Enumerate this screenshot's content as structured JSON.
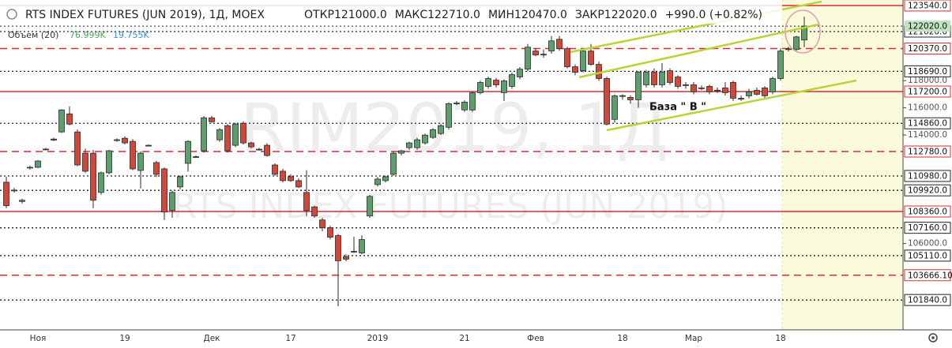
{
  "chart_data": {
    "type": "candlestick",
    "title": "RTS INDEX FUTURES (JUN 2019), 1Д, MOEX",
    "header_values": [
      {
        "label": "ОТКР",
        "value": "121000.0"
      },
      {
        "label": "МАКС",
        "value": "122710.0"
      },
      {
        "label": "МИН",
        "value": "120470.0"
      },
      {
        "label": "ЗАКР",
        "value": "122020.0"
      }
    ],
    "change": "+990.0 (+0.82%)",
    "volume_legend": {
      "name": "Объем (20)",
      "values": [
        {
          "text": "76.999K",
          "color": "#53a35a"
        },
        {
          "text": "19.755K",
          "color": "#2f8fd8"
        }
      ]
    },
    "watermarks": [
      "RIM2019, 1Д",
      "RTS INDEX FUTURES (JUN 2019)"
    ],
    "annotation": "База  \" В \"",
    "up_color": "#5d9e6d",
    "down_color": "#d2473a",
    "ylim": [
      99640,
      123945
    ],
    "yticks": [
      {
        "value": 118000,
        "label": "118000.0"
      },
      {
        "value": 116000,
        "label": "116000.0"
      },
      {
        "value": 114000,
        "label": "114000.0"
      },
      {
        "value": 106000,
        "label": "106000.0"
      }
    ],
    "levels": [
      {
        "value": 123540,
        "label": "123540.0",
        "style": "solid",
        "color": "#e0282e"
      },
      {
        "value": 121620,
        "label": "121620.0",
        "style": "dotted",
        "color": "#222222"
      },
      {
        "value": 120370,
        "label": "120370.0",
        "style": "dashed",
        "color": "#e0282e"
      },
      {
        "value": 118690,
        "label": "118690.0",
        "style": "dotted",
        "color": "#222222"
      },
      {
        "value": 117200,
        "label": "117200.0",
        "style": "solid",
        "color": "#e0282e"
      },
      {
        "value": 114860,
        "label": "114860.0",
        "style": "dotted",
        "color": "#222222"
      },
      {
        "value": 112780,
        "label": "112780.0",
        "style": "dashed",
        "color": "#e0282e"
      },
      {
        "value": 110980,
        "label": "110980.0",
        "style": "dotted",
        "color": "#222222"
      },
      {
        "value": 109920,
        "label": "109920.0",
        "style": "dotted",
        "color": "#222222"
      },
      {
        "value": 108360,
        "label": "108360.0",
        "style": "solid",
        "color": "#e0282e"
      },
      {
        "value": 107160,
        "label": "107160.0",
        "style": "dotted",
        "color": "#222222"
      },
      {
        "value": 105110,
        "label": "105110.0",
        "style": "dotted",
        "color": "#222222"
      },
      {
        "value": 103666.1,
        "label": "103666.10",
        "style": "dashed",
        "color": "#e0282e"
      },
      {
        "value": 101840,
        "label": "101840.0",
        "style": "dotted",
        "color": "#222222"
      }
    ],
    "last_price": {
      "value": 122020,
      "label": "122020.0",
      "color": "#bfe3bf"
    },
    "categories": [
      null,
      null,
      null,
      null,
      "Ноя",
      null,
      null,
      null,
      null,
      null,
      null,
      null,
      null,
      null,
      null,
      "19",
      null,
      null,
      null,
      null,
      null,
      null,
      null,
      null,
      null,
      null,
      "Дек",
      null,
      null,
      null,
      null,
      null,
      null,
      null,
      null,
      null,
      "17",
      null,
      null,
      null,
      null,
      null,
      null,
      null,
      null,
      null,
      null,
      "2019",
      null,
      null,
      null,
      null,
      null,
      null,
      null,
      null,
      null,
      null,
      "21",
      null,
      null,
      null,
      null,
      null,
      null,
      null,
      null,
      "Фев",
      null,
      null,
      null,
      null,
      null,
      null,
      null,
      null,
      null,
      null,
      "18",
      null,
      null,
      null,
      null,
      null,
      null,
      null,
      null,
      "Мар",
      null,
      null,
      null,
      null,
      null,
      null,
      null,
      null,
      null,
      null,
      "18",
      null,
      null,
      null
    ],
    "ohlc": [
      [
        110520,
        110925,
        108610,
        108785
      ],
      [
        109900,
        110100,
        109760,
        109940
      ],
      [
        109100,
        109300,
        108950,
        109190
      ],
      [
        111580,
        111750,
        111450,
        111620
      ],
      [
        111620,
        112150,
        111550,
        112080
      ],
      [
        112950,
        113050,
        112880,
        112960
      ],
      [
        113700,
        113800,
        113550,
        113620
      ],
      [
        114225,
        115900,
        114150,
        115845
      ],
      [
        115555,
        116100,
        114700,
        114800
      ],
      [
        114225,
        114400,
        111700,
        111790
      ],
      [
        112660,
        113000,
        111200,
        111330
      ],
      [
        112660,
        112900,
        108610,
        109190
      ],
      [
        109765,
        111300,
        109600,
        111215
      ],
      [
        111215,
        112900,
        111100,
        112835
      ],
      [
        113600,
        113750,
        113500,
        113650
      ],
      [
        113760,
        113900,
        113300,
        113415
      ],
      [
        113530,
        113700,
        111400,
        111505
      ],
      [
        111385,
        112800,
        110055,
        112660
      ],
      [
        113200,
        113300,
        113150,
        113240
      ],
      [
        111965,
        112100,
        110900,
        111100
      ],
      [
        111505,
        111600,
        107740,
        108320
      ],
      [
        108435,
        109900,
        107900,
        109765
      ],
      [
        110170,
        111000,
        110000,
        110925
      ],
      [
        111910,
        113600,
        111300,
        113530
      ],
      [
        112370,
        112500,
        112300,
        112400
      ],
      [
        112835,
        115400,
        112700,
        115265
      ],
      [
        115265,
        115400,
        114900,
        114975
      ],
      [
        113645,
        114500,
        113500,
        114395
      ],
      [
        114685,
        114800,
        112700,
        112835
      ],
      [
        113240,
        114900,
        113100,
        114800
      ],
      [
        114860,
        115000,
        113300,
        113415
      ],
      [
        113415,
        113500,
        113000,
        113125
      ],
      [
        112950,
        113050,
        112850,
        112900
      ],
      [
        113240,
        113400,
        112400,
        112485
      ],
      [
        111790,
        111900,
        111000,
        111100
      ],
      [
        111330,
        111500,
        110500,
        110635
      ],
      [
        110925,
        111100,
        110550,
        110635
      ],
      [
        110635,
        110800,
        110100,
        110170
      ],
      [
        109765,
        111400,
        108000,
        108435
      ],
      [
        108700,
        108800,
        107900,
        108030
      ],
      [
        107740,
        107900,
        106900,
        107165
      ],
      [
        107165,
        107300,
        106300,
        106470
      ],
      [
        106585,
        106700,
        101375,
        104730
      ],
      [
        105020,
        105200,
        104700,
        104850
      ],
      [
        105400,
        106500,
        105300,
        105425
      ],
      [
        105310,
        106600,
        105200,
        106295
      ],
      [
        108030,
        109600,
        107900,
        109475
      ],
      [
        110345,
        110900,
        110200,
        110750
      ],
      [
        110635,
        111000,
        110500,
        110925
      ],
      [
        111100,
        112800,
        111000,
        112660
      ],
      [
        112660,
        112900,
        112500,
        112835
      ],
      [
        113065,
        113500,
        112900,
        113415
      ],
      [
        113065,
        113800,
        112900,
        113645
      ],
      [
        113415,
        114100,
        113300,
        113990
      ],
      [
        113820,
        114500,
        113700,
        114395
      ],
      [
        114105,
        114800,
        114000,
        114685
      ],
      [
        114570,
        116400,
        114400,
        116305
      ],
      [
        116300,
        116500,
        116200,
        116350
      ],
      [
        115845,
        116550,
        115700,
        116420
      ],
      [
        115845,
        117200,
        115700,
        117115
      ],
      [
        117115,
        118000,
        117000,
        117870
      ],
      [
        117580,
        118300,
        117400,
        118160
      ],
      [
        118040,
        118200,
        117500,
        117695
      ],
      [
        117115,
        118100,
        116500,
        117985
      ],
      [
        117580,
        118600,
        117400,
        118445
      ],
      [
        118275,
        119000,
        118100,
        118850
      ],
      [
        118850,
        120700,
        118700,
        120470
      ],
      [
        120185,
        120400,
        119800,
        119895
      ],
      [
        119900,
        120300,
        119700,
        119950
      ],
      [
        120185,
        121300,
        120000,
        120935
      ],
      [
        121050,
        121300,
        120200,
        120360
      ],
      [
        120360,
        120500,
        118900,
        119025
      ],
      [
        119025,
        119200,
        118400,
        118620
      ],
      [
        118735,
        120400,
        118600,
        120185
      ],
      [
        120185,
        120700,
        119100,
        119200
      ],
      [
        119200,
        119400,
        118000,
        118160
      ],
      [
        118160,
        118300,
        114700,
        114800
      ],
      [
        115150,
        117000,
        114900,
        116885
      ],
      [
        116850,
        117000,
        116600,
        116900
      ],
      [
        116770,
        116900,
        116300,
        116595
      ],
      [
        116595,
        118700,
        116000,
        118620
      ],
      [
        117695,
        118800,
        117500,
        118620
      ],
      [
        118620,
        118900,
        117500,
        117695
      ],
      [
        117695,
        119300,
        117500,
        118620
      ],
      [
        118735,
        118900,
        117700,
        117870
      ],
      [
        118275,
        118400,
        117400,
        117580
      ],
      [
        117700,
        117900,
        117400,
        117650
      ],
      [
        117695,
        117900,
        117000,
        117175
      ],
      [
        117470,
        117650,
        117300,
        117450
      ],
      [
        117580,
        117700,
        117000,
        117175
      ],
      [
        117300,
        117500,
        117100,
        117280
      ],
      [
        117465,
        117900,
        116900,
        117115
      ],
      [
        117870,
        118000,
        116500,
        116710
      ],
      [
        116700,
        116900,
        116500,
        116680
      ],
      [
        116885,
        117400,
        116700,
        117175
      ],
      [
        117290,
        117500,
        116900,
        117000
      ],
      [
        117465,
        117600,
        116700,
        116885
      ],
      [
        117175,
        118300,
        117000,
        118160
      ],
      [
        118160,
        120400,
        118000,
        120185
      ],
      [
        120300,
        120500,
        120150,
        120350
      ],
      [
        120300,
        121300,
        120200,
        121225
      ],
      [
        121000,
        122710,
        120470,
        122020
      ]
    ]
  }
}
